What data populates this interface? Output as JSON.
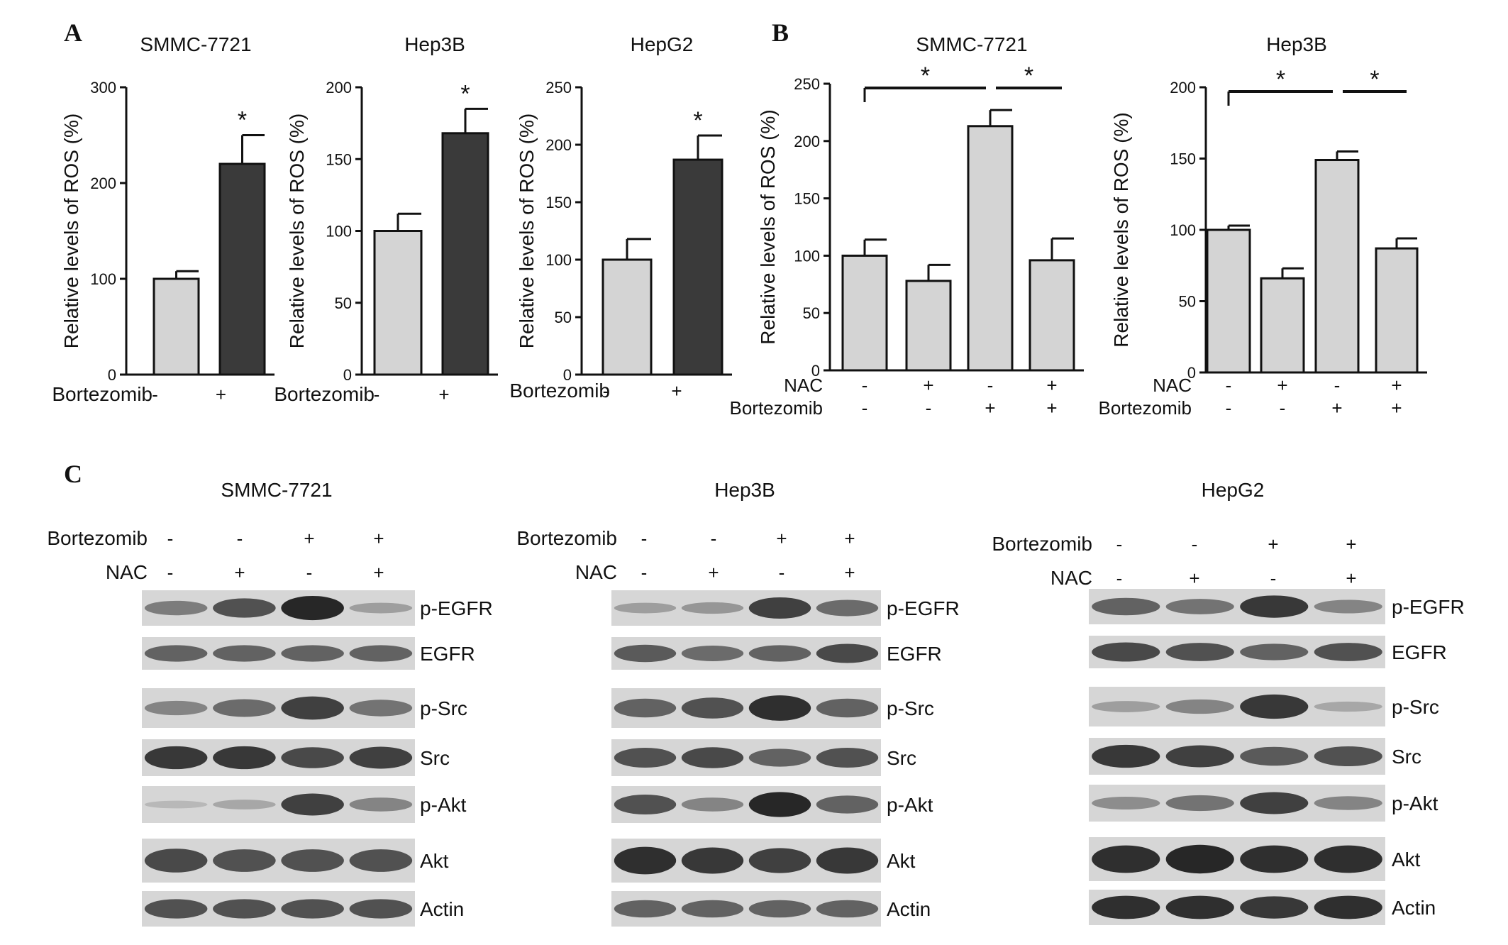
{
  "panel_letters": {
    "a": "A",
    "b": "B",
    "c": "C"
  },
  "chart_data": [
    {
      "type": "bar",
      "panel": "A",
      "title": "SMMC-7721",
      "ylabel": "Relative levels of ROS (%)",
      "ylim": [
        0,
        300
      ],
      "yticks": [
        0,
        100,
        200,
        300
      ],
      "row_labels": [
        "Bortezomib"
      ],
      "conditions": [
        [
          "-",
          "+"
        ]
      ],
      "values": [
        100,
        220
      ],
      "errors": [
        8,
        30
      ],
      "bar_colors": [
        "#d4d4d4",
        "#3a3a3a"
      ],
      "annotations": [
        {
          "bar": 1,
          "text": "*"
        }
      ],
      "brackets": []
    },
    {
      "type": "bar",
      "panel": "A",
      "title": "Hep3B",
      "ylabel": "Relative levels of ROS (%)",
      "ylim": [
        0,
        200
      ],
      "yticks": [
        0,
        50,
        100,
        150,
        200
      ],
      "row_labels": [
        "Bortezomib"
      ],
      "conditions": [
        [
          "-",
          "+"
        ]
      ],
      "values": [
        100,
        168
      ],
      "errors": [
        12,
        17
      ],
      "bar_colors": [
        "#d4d4d4",
        "#3a3a3a"
      ],
      "annotations": [
        {
          "bar": 1,
          "text": "*"
        }
      ],
      "brackets": []
    },
    {
      "type": "bar",
      "panel": "A",
      "title": "HepG2",
      "ylabel": "Relative levels of ROS (%)",
      "ylim": [
        0,
        250
      ],
      "yticks": [
        0,
        50,
        100,
        150,
        200,
        250
      ],
      "row_labels": [
        "Bortezomib"
      ],
      "conditions": [
        [
          "-",
          "+"
        ]
      ],
      "values": [
        100,
        187
      ],
      "errors": [
        18,
        21
      ],
      "bar_colors": [
        "#d4d4d4",
        "#3a3a3a"
      ],
      "annotations": [
        {
          "bar": 1,
          "text": "*"
        }
      ],
      "brackets": []
    },
    {
      "type": "bar",
      "panel": "B",
      "title": "SMMC-7721",
      "ylabel": "Relative levels of ROS (%)",
      "ylim": [
        0,
        250
      ],
      "yticks": [
        0,
        50,
        100,
        150,
        200,
        250
      ],
      "row_labels": [
        "NAC",
        "Bortezomib"
      ],
      "conditions": [
        [
          "-",
          "+",
          "-",
          "+"
        ],
        [
          "-",
          "-",
          "+",
          "+"
        ]
      ],
      "values": [
        100,
        78,
        213,
        96
      ],
      "errors": [
        14,
        14,
        14,
        19
      ],
      "bar_colors": [
        "#d4d4d4",
        "#d4d4d4",
        "#d4d4d4",
        "#d4d4d4"
      ],
      "annotations": [],
      "brackets": [
        {
          "from": 0,
          "to": 2,
          "text": "*"
        },
        {
          "from": 2,
          "to": 3,
          "text": "*"
        }
      ]
    },
    {
      "type": "bar",
      "panel": "B",
      "title": "Hep3B",
      "ylabel": "Relative levels of ROS (%)",
      "ylim": [
        0,
        200
      ],
      "yticks": [
        0,
        50,
        100,
        150,
        200
      ],
      "row_labels": [
        "NAC",
        "Bortezomib"
      ],
      "conditions": [
        [
          "-",
          "+",
          "-",
          "+"
        ],
        [
          "-",
          "-",
          "+",
          "+"
        ]
      ],
      "values": [
        100,
        66,
        149,
        87
      ],
      "errors": [
        3,
        7,
        6,
        7
      ],
      "bar_colors": [
        "#d4d4d4",
        "#d4d4d4",
        "#d4d4d4",
        "#d4d4d4"
      ],
      "annotations": [],
      "brackets": [
        {
          "from": 0,
          "to": 2,
          "text": "*"
        },
        {
          "from": 2,
          "to": 3,
          "text": "*"
        }
      ]
    }
  ],
  "blots": [
    {
      "title": "SMMC-7721",
      "treatments": [
        {
          "label": "Bortezomib",
          "signs": [
            "-",
            "-",
            "+",
            "+"
          ]
        },
        {
          "label": "NAC",
          "signs": [
            "-",
            "+",
            "-",
            "+"
          ]
        }
      ],
      "rows": [
        {
          "label": "p-EGFR",
          "intensities": [
            0.45,
            0.7,
            0.95,
            0.25
          ]
        },
        {
          "label": "EGFR",
          "intensities": [
            0.6,
            0.6,
            0.6,
            0.6
          ]
        },
        {
          "label": "p-Src",
          "intensities": [
            0.4,
            0.55,
            0.8,
            0.5
          ]
        },
        {
          "label": "Src",
          "intensities": [
            0.85,
            0.85,
            0.75,
            0.8
          ]
        },
        {
          "label": "p-Akt",
          "intensities": [
            0.1,
            0.2,
            0.8,
            0.4
          ]
        },
        {
          "label": "Akt",
          "intensities": [
            0.75,
            0.7,
            0.7,
            0.7
          ]
        },
        {
          "label": "Actin",
          "intensities": [
            0.7,
            0.7,
            0.7,
            0.7
          ]
        }
      ]
    },
    {
      "title": "Hep3B",
      "treatments": [
        {
          "label": "Bortezomib",
          "signs": [
            "-",
            "-",
            "+",
            "+"
          ]
        },
        {
          "label": "NAC",
          "signs": [
            "-",
            "+",
            "-",
            "+"
          ]
        }
      ],
      "rows": [
        {
          "label": "p-EGFR",
          "intensities": [
            0.25,
            0.3,
            0.8,
            0.55
          ]
        },
        {
          "label": "EGFR",
          "intensities": [
            0.65,
            0.55,
            0.6,
            0.75
          ]
        },
        {
          "label": "p-Src",
          "intensities": [
            0.6,
            0.7,
            0.9,
            0.6
          ]
        },
        {
          "label": "Src",
          "intensities": [
            0.7,
            0.75,
            0.6,
            0.7
          ]
        },
        {
          "label": "p-Akt",
          "intensities": [
            0.7,
            0.4,
            0.95,
            0.6
          ]
        },
        {
          "label": "Akt",
          "intensities": [
            0.9,
            0.85,
            0.8,
            0.85
          ]
        },
        {
          "label": "Actin",
          "intensities": [
            0.6,
            0.6,
            0.6,
            0.6
          ]
        }
      ]
    },
    {
      "title": "HepG2",
      "treatments": [
        {
          "label": "Bortezomib",
          "signs": [
            "-",
            "-",
            "+",
            "+"
          ]
        },
        {
          "label": "NAC",
          "signs": [
            "-",
            "+",
            "-",
            "+"
          ]
        }
      ],
      "rows": [
        {
          "label": "p-EGFR",
          "intensities": [
            0.6,
            0.5,
            0.85,
            0.4
          ]
        },
        {
          "label": "EGFR",
          "intensities": [
            0.75,
            0.7,
            0.6,
            0.7
          ]
        },
        {
          "label": "p-Src",
          "intensities": [
            0.25,
            0.4,
            0.85,
            0.2
          ]
        },
        {
          "label": "Src",
          "intensities": [
            0.85,
            0.8,
            0.65,
            0.7
          ]
        },
        {
          "label": "p-Akt",
          "intensities": [
            0.35,
            0.5,
            0.8,
            0.4
          ]
        },
        {
          "label": "Akt",
          "intensities": [
            0.9,
            0.95,
            0.9,
            0.9
          ]
        },
        {
          "label": "Actin",
          "intensities": [
            0.9,
            0.9,
            0.85,
            0.9
          ]
        }
      ]
    }
  ]
}
